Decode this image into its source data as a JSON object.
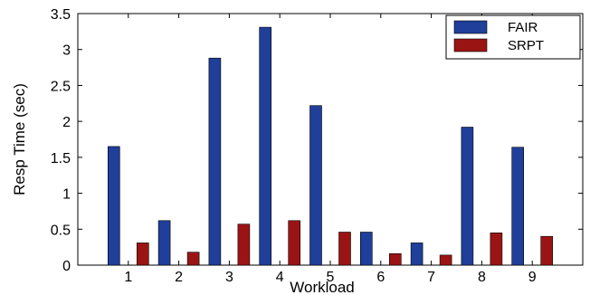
{
  "chart_data": {
    "type": "bar",
    "xlabel": "Workload",
    "ylabel": "Resp Time (sec)",
    "categories": [
      "1",
      "2",
      "3",
      "4",
      "5",
      "6",
      "7",
      "8",
      "9"
    ],
    "ylim": [
      0,
      3.5
    ],
    "yticks": [
      "0",
      "0.5",
      "1",
      "1.5",
      "2",
      "2.5",
      "3",
      "3.5"
    ],
    "series": [
      {
        "name": "FAIR",
        "color": "#1f3f9a",
        "values": [
          1.65,
          0.62,
          2.88,
          3.31,
          2.22,
          0.46,
          0.31,
          1.92,
          1.64
        ]
      },
      {
        "name": "SRPT",
        "color": "#9b1414",
        "values": [
          0.31,
          0.18,
          0.57,
          0.62,
          0.46,
          0.16,
          0.14,
          0.45,
          0.4
        ]
      }
    ],
    "legend": "top-right",
    "grid": false
  }
}
